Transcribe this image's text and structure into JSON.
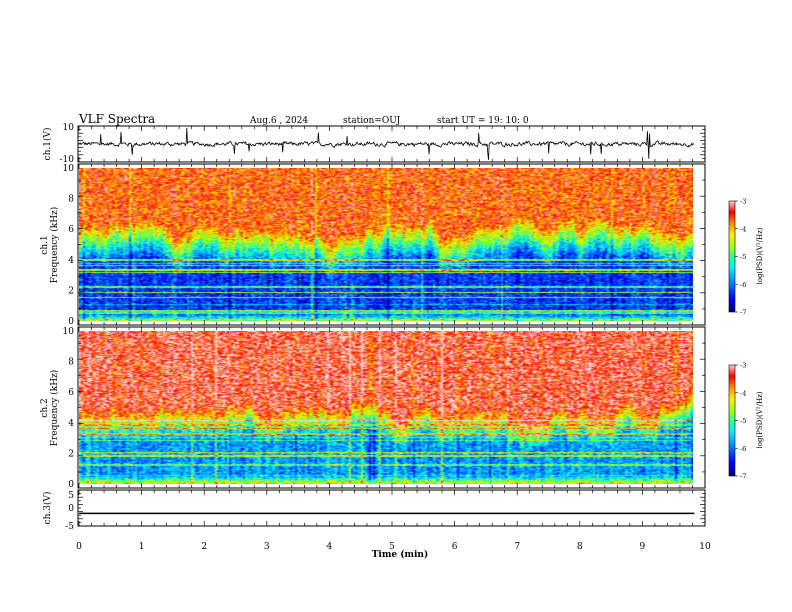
{
  "header": {
    "title": "VLF Spectra",
    "date": "Aug.6 , 2024",
    "station": "station=OUJ",
    "start": "start UT = 19: 10: 0"
  },
  "colors": {
    "colormap": [
      "#00007a",
      "#0000ff",
      "#0078ff",
      "#00e6ff",
      "#32ff96",
      "#aaff00",
      "#ffee00",
      "#ff9000",
      "#ff2000",
      "#ff0000",
      "#ffc8c8"
    ],
    "trace": "#000000"
  },
  "chart_data": [
    {
      "type": "line",
      "panel": "ch1_waveform",
      "ylabel": "ch.1(V)",
      "ylim": [
        -10,
        10
      ],
      "yticks": [
        "10",
        "-10"
      ],
      "xlim": [
        0,
        10
      ],
      "description_values": {
        "baseline": 0,
        "typical_amplitude": 2,
        "spike_max": 9
      }
    },
    {
      "type": "heatmap",
      "panel": "ch1_spectrogram",
      "ylabel": "ch.1\nFrequency (kHz)",
      "ylabel_lines": [
        "ch.1",
        "Frequency (kHz)"
      ],
      "ylim": [
        0,
        10
      ],
      "yticks": [
        "0",
        "2",
        "4",
        "6",
        "8",
        "10"
      ],
      "xlim": [
        0,
        9.83
      ],
      "colorbar": {
        "label": "log(PSD)(V²/Hz)",
        "range": [
          -7,
          -3
        ],
        "ticks": [
          "-3",
          "-4",
          "-5",
          "-6",
          "-7"
        ]
      },
      "profile": {
        "high_band_khz": [
          6,
          10
        ],
        "high_level": -3.6,
        "transition_khz": [
          3.5,
          6
        ],
        "low_band_khz": [
          0,
          3.5
        ],
        "low_level": -6.3
      }
    },
    {
      "type": "heatmap",
      "panel": "ch2_spectrogram",
      "ylabel": "ch.2\nFrequency (kHz)",
      "ylabel_lines": [
        "ch.2",
        "Frequency (kHz)"
      ],
      "ylim": [
        0,
        10
      ],
      "yticks": [
        "0",
        "2",
        "4",
        "6",
        "8",
        "10"
      ],
      "xlim": [
        0,
        9.83
      ],
      "colorbar": {
        "label": "log(PSD)(V²/Hz)",
        "range": [
          -7,
          -3
        ],
        "ticks": [
          "-3",
          "-4",
          "-5",
          "-6",
          "-7"
        ]
      },
      "profile": {
        "high_band_khz": [
          5,
          10
        ],
        "high_level": -3.3,
        "transition_khz": [
          3,
          5
        ],
        "low_band_khz": [
          0,
          3
        ],
        "low_level": -5.8
      }
    },
    {
      "type": "line",
      "panel": "ch3_waveform",
      "ylabel": "ch.3(V)",
      "ylim": [
        -5,
        5
      ],
      "yticks": [
        "5",
        "0",
        "-5"
      ],
      "xlim": [
        0,
        9.83
      ],
      "values": {
        "constant_level": -1.5
      }
    }
  ],
  "xaxis": {
    "label": "Time (min)",
    "ticks": [
      "0",
      "1",
      "2",
      "3",
      "4",
      "5",
      "6",
      "7",
      "8",
      "9",
      "10"
    ]
  }
}
